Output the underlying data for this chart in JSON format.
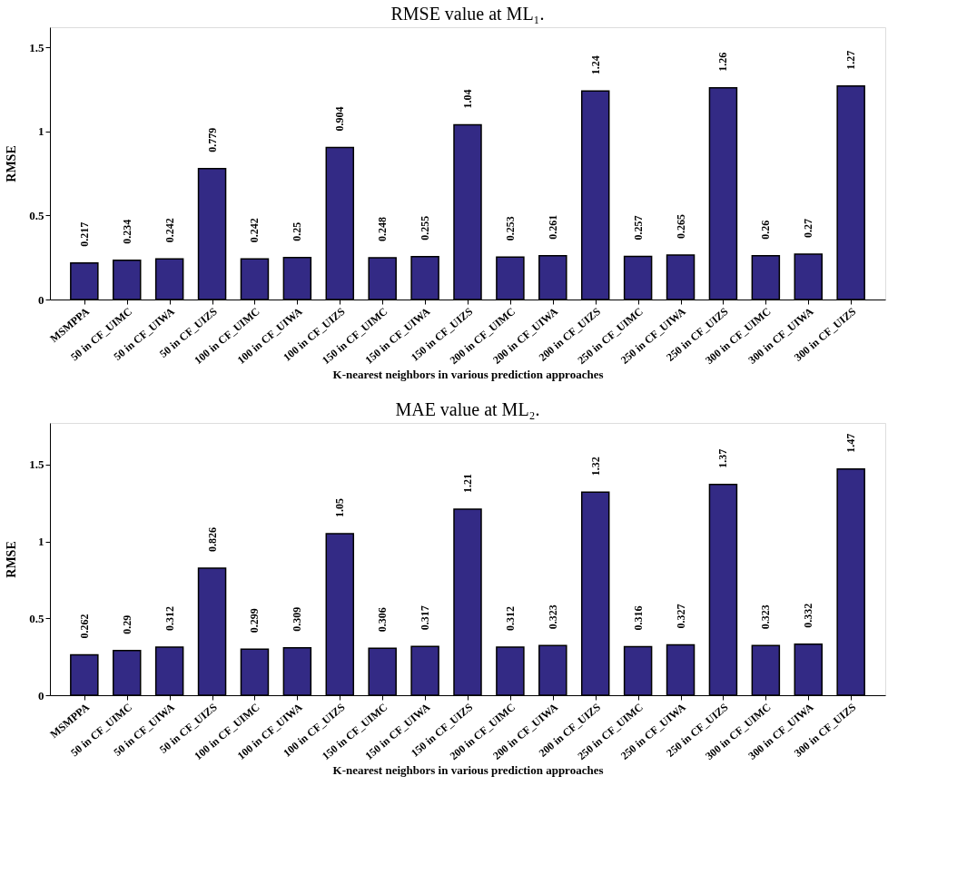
{
  "chart_data": [
    {
      "type": "bar",
      "title": "RMSE value at ML₁.",
      "xlabel": "K-nearest neighbors in various prediction approaches",
      "ylabel": "RMSE",
      "categories": [
        "MSMPPA",
        "50 in CF_UIMC",
        "50 in CF_UIWA",
        "50 in CF_UIZS",
        "100 in CF_UIMC",
        "100 in CF_UIWA",
        "100 in CF_UIZS",
        "150 in CF_UIMC",
        "150 in CF_UIWA",
        "150 in CF_UIZS",
        "200 in CF_UIMC",
        "200 in CF_UIWA",
        "200 in CF_UIZS",
        "250 in CF_UIMC",
        "250 in CF_UIWA",
        "250 in CF_UIZS",
        "300 in CF_UIMC",
        "300 in CF_UIWA",
        "300 in CF_UIZS"
      ],
      "values": [
        0.217,
        0.234,
        0.242,
        0.779,
        0.242,
        0.25,
        0.904,
        0.248,
        0.255,
        1.04,
        0.253,
        0.261,
        1.24,
        0.257,
        0.265,
        1.26,
        0.26,
        0.27,
        1.27
      ],
      "color": "#332a85",
      "ylim": [
        0,
        1.62
      ],
      "yticks": [
        0,
        0.5,
        1,
        1.5
      ],
      "data_labels": true,
      "grid": false
    },
    {
      "type": "bar",
      "title": "MAE value at ML₂.",
      "xlabel": "K-nearest neighbors in various prediction approaches",
      "ylabel": "RMSE",
      "categories": [
        "MSMPPA",
        "50 in CF_UIMC",
        "50 in CF_UIWA",
        "50 in CF_UIZS",
        "100 in CF_UIMC",
        "100 in CF_UIWA",
        "100 in CF_UIZS",
        "150 in CF_UIMC",
        "150 in CF_UIWA",
        "150 in CF_UIZS",
        "200 in CF_UIMC",
        "200 in CF_UIWA",
        "200 in CF_UIZS",
        "250 in CF_UIMC",
        "250 in CF_UIWA",
        "250 in CF_UIZS",
        "300 in CF_UIMC",
        "300 in CF_UIWA",
        "300 in CF_UIZS"
      ],
      "values": [
        0.262,
        0.29,
        0.312,
        0.826,
        0.299,
        0.309,
        1.05,
        0.306,
        0.317,
        1.21,
        0.312,
        0.323,
        1.32,
        0.316,
        0.327,
        1.37,
        0.323,
        0.332,
        1.47
      ],
      "color": "#332a85",
      "ylim": [
        0,
        1.77
      ],
      "yticks": [
        0,
        0.5,
        1,
        1.5
      ],
      "data_labels": true,
      "grid": false
    }
  ]
}
